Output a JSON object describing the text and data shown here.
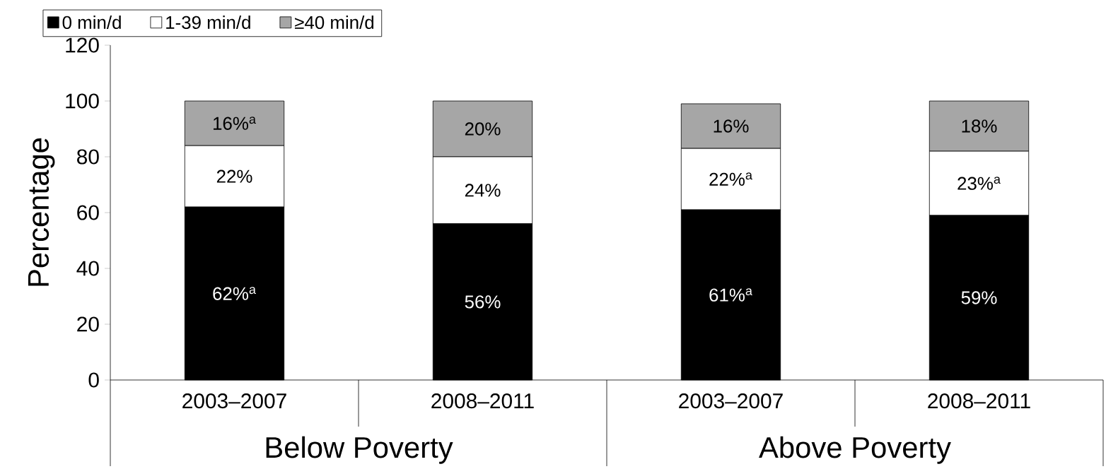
{
  "chart_data": {
    "type": "bar",
    "stacked": true,
    "ylabel": "Percentage",
    "categories": [
      "2003–2007",
      "2008–2011",
      "2003–2007",
      "2008–2011"
    ],
    "annotations": [
      "Below Poverty",
      "Above Poverty"
    ],
    "ylim": [
      0,
      120
    ],
    "yticks": [
      0,
      20,
      40,
      60,
      80,
      100,
      120
    ],
    "legend": "top left",
    "series": [
      {
        "name": "0 min/d",
        "color": "#000000",
        "values": [
          62,
          56,
          61,
          59
        ],
        "value_labels": [
          "62%$^{a}$",
          "56%",
          "61%$^{a}$",
          "59%"
        ]
      },
      {
        "name": "1-39 min/d",
        "color": "#ffffff",
        "values": [
          22,
          24,
          22,
          23
        ],
        "value_labels": [
          "22%",
          "24%",
          "22%$^{a}$",
          "23%$^{a}$"
        ]
      },
      {
        "name": "≥40 min/d",
        "color": "#a6a6a6",
        "values": [
          16,
          20,
          16,
          18
        ],
        "value_labels": [
          "16%$^{a}$",
          "20%",
          "16%",
          "18%"
        ]
      }
    ]
  }
}
